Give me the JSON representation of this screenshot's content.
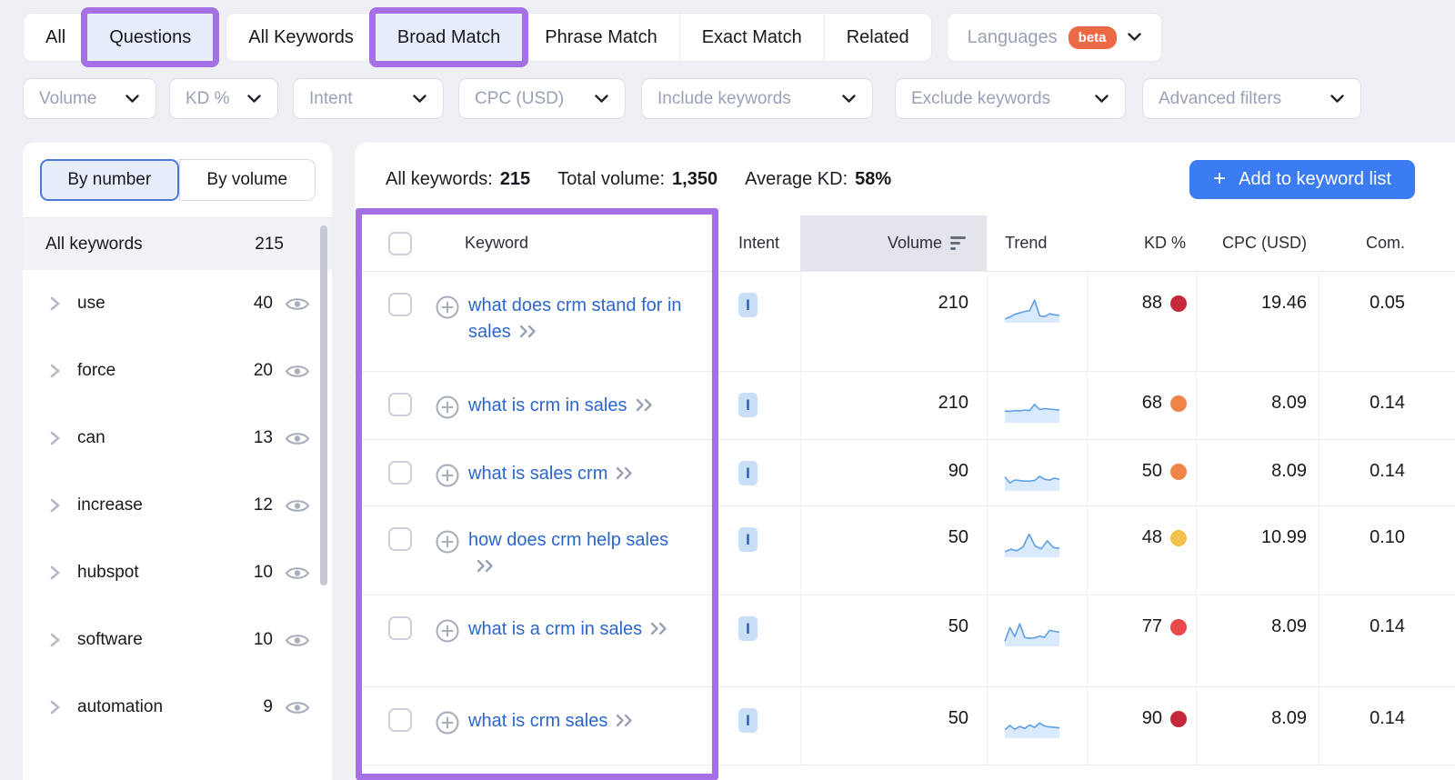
{
  "tabs": {
    "group1": [
      {
        "label": "All",
        "selected": false
      },
      {
        "label": "Questions",
        "selected": true
      }
    ],
    "group2": [
      {
        "label": "All Keywords",
        "selected": false
      },
      {
        "label": "Broad Match",
        "selected": true
      },
      {
        "label": "Phrase Match",
        "selected": false
      },
      {
        "label": "Exact Match",
        "selected": false
      },
      {
        "label": "Related",
        "selected": false
      }
    ],
    "languages": {
      "label": "Languages",
      "badge": "beta"
    }
  },
  "filters": [
    {
      "label": "Volume"
    },
    {
      "label": "KD %"
    },
    {
      "label": "Intent"
    },
    {
      "label": "CPC (USD)"
    },
    {
      "label": "Include keywords"
    },
    {
      "label": "Exclude keywords"
    },
    {
      "label": "Advanced filters"
    }
  ],
  "sidebar": {
    "toggle": {
      "by_number": "By number",
      "by_volume": "By volume"
    },
    "all_row": {
      "label": "All keywords",
      "count": "215"
    },
    "items": [
      {
        "label": "use",
        "count": "40"
      },
      {
        "label": "force",
        "count": "20"
      },
      {
        "label": "can",
        "count": "13"
      },
      {
        "label": "increase",
        "count": "12"
      },
      {
        "label": "hubspot",
        "count": "10"
      },
      {
        "label": "software",
        "count": "10"
      },
      {
        "label": "automation",
        "count": "9"
      }
    ]
  },
  "summary": {
    "all_keywords_label": "All keywords:",
    "all_keywords_value": "215",
    "total_volume_label": "Total volume:",
    "total_volume_value": "1,350",
    "average_kd_label": "Average KD:",
    "average_kd_value": "58%",
    "add_plus": "+",
    "add_button": "Add to keyword list"
  },
  "table": {
    "headers": {
      "keyword": "Keyword",
      "intent": "Intent",
      "volume": "Volume",
      "trend": "Trend",
      "kd": "KD %",
      "cpc": "CPC (USD)",
      "com": "Com."
    },
    "rows": [
      {
        "keyword": "what does crm stand for in sales",
        "intent": "I",
        "volume": "210",
        "trend": [
          8,
          16,
          28,
          34,
          40,
          44,
          88,
          22,
          18,
          30,
          26,
          24
        ],
        "kd": "88",
        "kd_color": "#c4293a",
        "cpc": "19.46",
        "com": "0.05"
      },
      {
        "keyword": "what is crm in sales",
        "intent": "I",
        "volume": "210",
        "trend": [
          42,
          40,
          44,
          42,
          46,
          44,
          70,
          48,
          52,
          50,
          48,
          46
        ],
        "kd": "68",
        "kd_color": "#ef8649",
        "cpc": "8.09",
        "com": "0.14"
      },
      {
        "keyword": "what is sales crm",
        "intent": "I",
        "volume": "90",
        "trend": [
          52,
          26,
          38,
          36,
          34,
          34,
          36,
          54,
          42,
          38,
          46,
          42
        ],
        "kd": "50",
        "kd_color": "#ef8649",
        "cpc": "8.09",
        "com": "0.14"
      },
      {
        "keyword": "how does crm help sales",
        "intent": "I",
        "volume": "50",
        "trend": [
          16,
          26,
          20,
          36,
          90,
          40,
          28,
          62,
          34,
          30
        ],
        "kd": "48",
        "kd_color": "#f3c04b",
        "cpc": "10.99",
        "com": "0.10"
      },
      {
        "keyword": "what is a crm in sales",
        "intent": "I",
        "volume": "50",
        "trend": [
          14,
          72,
          34,
          88,
          30,
          26,
          28,
          36,
          30,
          60,
          56,
          52
        ],
        "kd": "77",
        "kd_color": "#e9484d",
        "cpc": "8.09",
        "com": "0.14"
      },
      {
        "keyword": "what is crm sales",
        "intent": "I",
        "volume": "50",
        "trend": [
          28,
          46,
          30,
          42,
          34,
          48,
          38,
          56,
          44,
          40,
          38,
          36
        ],
        "kd": "90",
        "kd_color": "#c4293a",
        "cpc": "8.09",
        "com": "0.14"
      }
    ]
  },
  "colors": {
    "annotation_purple": "#a470e4",
    "link_blue": "#2b66cc",
    "button_blue": "#3c7cf3",
    "beta_orange": "#eb6a45",
    "intent_badge_bg": "#c9dff7",
    "sparkline_blue": "#5da0e8"
  }
}
